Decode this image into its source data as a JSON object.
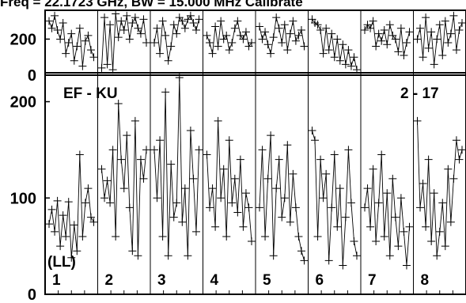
{
  "chart_data": {
    "type": "line",
    "title": "Freq = 22.1723 GHz, BW = 15.000 MHz  Calibrate",
    "baseline_label": "EF - KU",
    "scan_label": "2 - 17",
    "polarization_label": "(LL)",
    "marker": "plus",
    "line_color": "#000000",
    "phase_panel": {
      "ylim": [
        0,
        360
      ],
      "yticks": [
        0,
        200
      ]
    },
    "amp_panel": {
      "ylim": [
        0,
        230
      ],
      "yticks": [
        0,
        100,
        200
      ]
    },
    "channels": [
      {
        "label": "1",
        "phase": [
          300,
          260,
          330,
          250,
          200,
          290,
          120,
          180,
          230,
          80,
          160,
          260,
          50,
          190,
          220,
          140,
          100
        ],
        "amp": [
          73,
          88,
          65,
          97,
          50,
          82,
          60,
          96,
          38,
          72,
          45,
          145,
          60,
          95,
          110,
          80,
          75
        ]
      },
      {
        "label": "2",
        "phase": [
          40,
          320,
          60,
          280,
          30,
          340,
          210,
          300,
          250,
          330,
          200,
          290,
          320,
          260,
          230,
          310,
          180
        ],
        "amp": [
          130,
          100,
          118,
          95,
          150,
          60,
          198,
          140,
          110,
          165,
          90,
          45,
          180,
          40,
          140,
          120,
          150
        ]
      },
      {
        "label": "3",
        "phase": [
          180,
          260,
          120,
          300,
          220,
          80,
          160,
          280,
          230,
          320,
          300,
          260,
          310,
          330,
          290,
          250,
          310
        ],
        "amp": [
          150,
          100,
          160,
          60,
          210,
          40,
          135,
          80,
          95,
          225,
          75,
          110,
          40,
          170,
          120,
          65,
          150
        ]
      },
      {
        "label": "4",
        "phase": [
          220,
          180,
          120,
          270,
          160,
          300,
          200,
          220,
          140,
          180,
          260,
          300,
          220,
          200,
          240,
          160,
          180
        ],
        "amp": [
          145,
          90,
          110,
          70,
          180,
          100,
          130,
          60,
          160,
          95,
          120,
          85,
          140,
          70,
          105,
          90,
          55
        ]
      },
      {
        "label": "5",
        "phase": [
          270,
          200,
          240,
          170,
          120,
          210,
          320,
          260,
          180,
          280,
          140,
          230,
          300,
          190,
          220,
          250,
          160
        ],
        "amp": [
          90,
          150,
          60,
          120,
          165,
          40,
          110,
          140,
          80,
          100,
          155,
          75,
          125,
          90,
          60,
          45,
          35
        ]
      },
      {
        "label": "6",
        "phase": [
          310,
          290,
          280,
          250,
          120,
          260,
          140,
          230,
          100,
          200,
          80,
          170,
          60,
          140,
          50,
          100,
          30
        ],
        "amp": [
          170,
          160,
          60,
          140,
          100,
          125,
          35,
          90,
          145,
          70,
          110,
          30,
          80,
          150,
          95,
          55,
          40
        ]
      },
      {
        "label": "7",
        "phase": [
          250,
          280,
          260,
          300,
          160,
          230,
          190,
          250,
          170,
          280,
          220,
          200,
          130,
          260,
          110,
          180,
          240
        ],
        "amp": [
          90,
          110,
          70,
          130,
          55,
          95,
          145,
          60,
          105,
          40,
          120,
          80,
          50,
          100,
          65,
          30,
          70
        ]
      },
      {
        "label": "8",
        "phase": [
          200,
          260,
          100,
          320,
          150,
          240,
          60,
          200,
          280,
          110,
          300,
          180,
          230,
          330,
          140,
          250,
          290
        ],
        "amp": [
          180,
          90,
          115,
          70,
          140,
          55,
          105,
          40,
          65,
          95,
          50,
          130,
          75,
          120,
          160,
          140,
          150
        ]
      }
    ]
  }
}
